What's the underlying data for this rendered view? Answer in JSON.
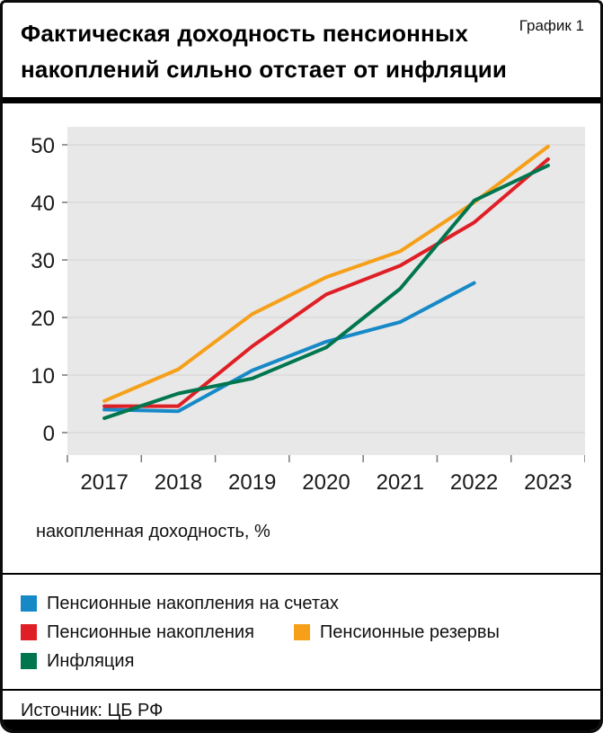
{
  "header": {
    "title_line1": "Фактическая доходность пенсионных",
    "title_line2": "накоплений сильно отстает от инфляции",
    "chart_label": "График 1"
  },
  "source": "Источник: ЦБ РФ",
  "colors": {
    "plot_bg": "#e8e8e8",
    "grid": "#d2d2d2",
    "axis_tick": "#777777",
    "text": "#111111",
    "frame": "#000000"
  },
  "chart_data": {
    "type": "line",
    "title": "Фактическая доходность пенсионных накоплений сильно отстает от инфляции",
    "ylabel": "накопленная доходность, %",
    "xlabel": "",
    "x": [
      2017,
      2018,
      2019,
      2020,
      2021,
      2022,
      2023
    ],
    "ylim": [
      0,
      50
    ],
    "yticks": [
      0,
      10,
      20,
      30,
      40,
      50
    ],
    "grid": true,
    "legend_position": "bottom",
    "series": [
      {
        "name": "Пенсионные накопления на счетах",
        "color": "#1789c7",
        "values": [
          4.0,
          3.7,
          10.8,
          15.8,
          19.2,
          26.0,
          null
        ]
      },
      {
        "name": "Пенсионные накопления",
        "color": "#df1f26",
        "values": [
          4.6,
          4.6,
          15.0,
          24.0,
          29.0,
          36.5,
          47.5
        ]
      },
      {
        "name": "Пенсионные резервы",
        "color": "#f6a01a",
        "values": [
          5.5,
          11.0,
          20.6,
          27.0,
          31.5,
          40.0,
          49.7
        ]
      },
      {
        "name": "Инфляция",
        "color": "#00764e",
        "values": [
          2.5,
          6.8,
          9.4,
          14.8,
          25.0,
          40.3,
          46.4
        ]
      }
    ]
  }
}
